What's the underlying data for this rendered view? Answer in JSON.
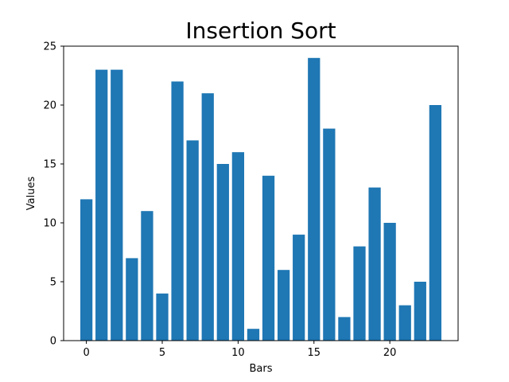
{
  "chart_data": {
    "type": "bar",
    "title": "Insertion Sort",
    "xlabel": "Bars",
    "ylabel": "Values",
    "x": [
      0,
      1,
      2,
      3,
      4,
      5,
      6,
      7,
      8,
      9,
      10,
      11,
      12,
      13,
      14,
      15,
      16,
      17,
      18,
      19,
      20,
      21,
      22,
      23
    ],
    "values": [
      12,
      23,
      23,
      7,
      11,
      4,
      22,
      17,
      21,
      15,
      16,
      1,
      14,
      6,
      9,
      24,
      18,
      2,
      8,
      13,
      10,
      3,
      5,
      20
    ],
    "xlim": [
      -1.5,
      24.5
    ],
    "ylim": [
      0,
      25
    ],
    "xticks": [
      0,
      5,
      10,
      15,
      20
    ],
    "yticks": [
      0,
      5,
      10,
      15,
      20,
      25
    ],
    "bar_color": "#1f77b4",
    "grid": false,
    "legend": "none"
  }
}
